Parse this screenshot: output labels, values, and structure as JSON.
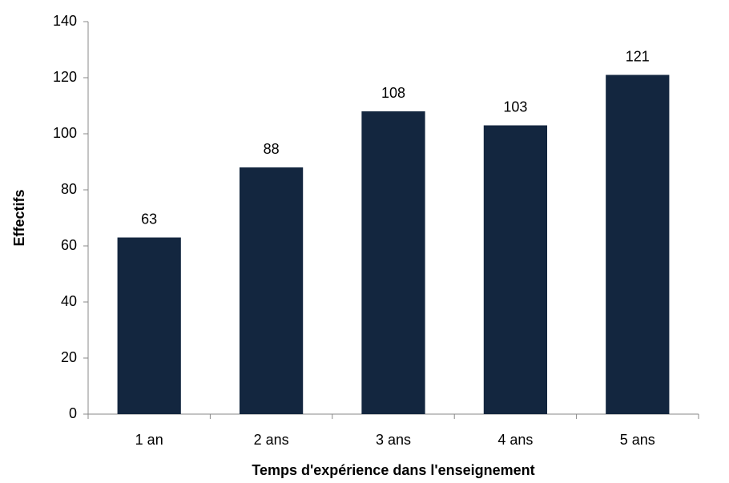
{
  "chart_data": {
    "type": "bar",
    "xlabel": "Temps d'expérience dans l'enseignement",
    "ylabel": "Effectifs",
    "categories": [
      "1 an",
      "2 ans",
      "3 ans",
      "4 ans",
      "5 ans"
    ],
    "values": [
      63,
      88,
      108,
      103,
      121
    ],
    "color": "#13263f",
    "ylim": [
      0,
      140
    ],
    "yticks": [
      0,
      20,
      40,
      60,
      80,
      100,
      120,
      140
    ],
    "grid": false
  }
}
